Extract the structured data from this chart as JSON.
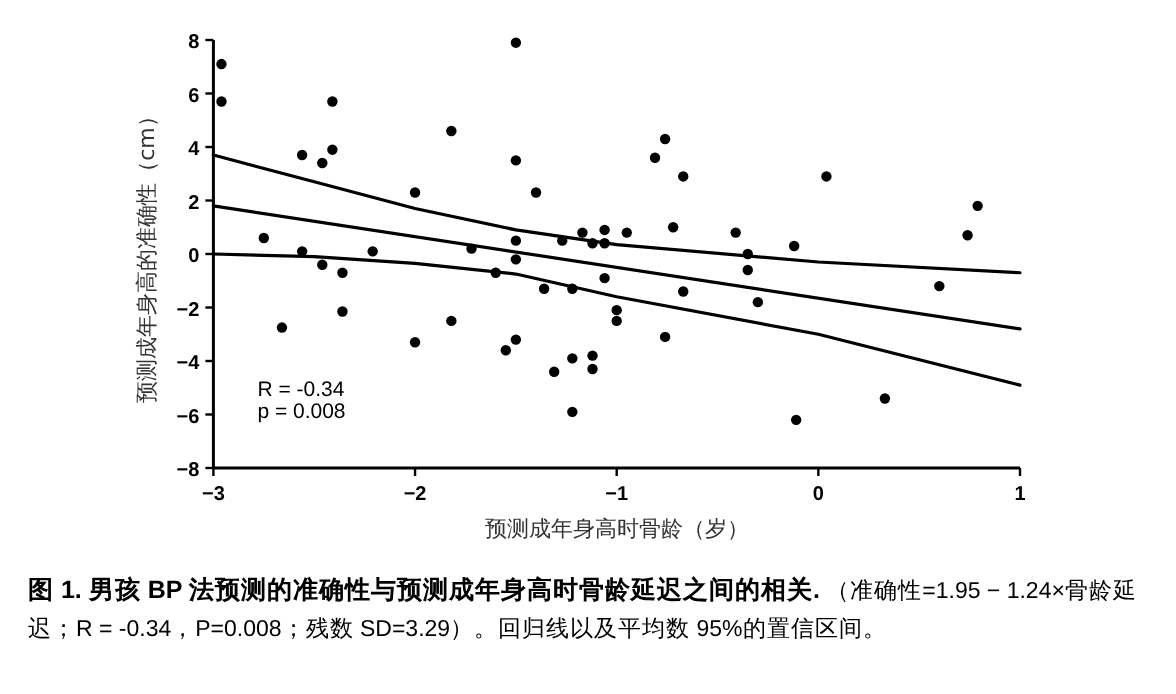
{
  "chart_data": {
    "type": "scatter",
    "xlabel": "预测成年身高时骨龄（岁）",
    "ylabel": "预测成年身高的准确性（cm）",
    "xlim": [
      -3,
      1
    ],
    "xticks": [
      -3,
      -2,
      -1,
      0,
      1
    ],
    "ylim": [
      -8,
      8
    ],
    "yticks": [
      -8,
      -6,
      -4,
      -2,
      0,
      2,
      4,
      6,
      8
    ],
    "grid": false,
    "series": [
      {
        "color": "#000000",
        "marker": "circle",
        "x": [
          -2.96,
          -2.96,
          -2.75,
          -2.66,
          -2.56,
          -2.56,
          -2.46,
          -2.46,
          -2.41,
          -2.41,
          -2.36,
          -2.36,
          -2.21,
          -2.0,
          -2.0,
          -1.82,
          -1.82,
          -1.72,
          -1.6,
          -1.55,
          -1.5,
          -1.5,
          -1.5,
          -1.5,
          -1.5,
          -1.4,
          -1.36,
          -1.31,
          -1.27,
          -1.22,
          -1.22,
          -1.22,
          -1.17,
          -1.12,
          -1.12,
          -1.12,
          -1.06,
          -1.06,
          -0.95,
          -1.06,
          -1.0,
          -1.0,
          -0.81,
          -0.76,
          -0.67,
          -0.72,
          -0.67,
          -0.76,
          -0.41,
          -0.35,
          -0.35,
          -0.3,
          -0.12,
          -0.11,
          0.04,
          0.33,
          0.6,
          0.74,
          0.79
        ],
        "values": [
          7.1,
          5.7,
          0.6,
          -2.75,
          3.7,
          0.1,
          3.4,
          -0.4,
          5.7,
          3.9,
          -0.7,
          -2.15,
          0.1,
          2.3,
          -3.3,
          4.6,
          -2.5,
          0.2,
          -0.7,
          -3.6,
          7.9,
          3.5,
          0.5,
          -0.2,
          -3.2,
          2.3,
          -1.3,
          -4.4,
          0.5,
          -1.3,
          -3.9,
          -5.9,
          0.8,
          0.4,
          -3.8,
          -4.3,
          0.4,
          0.9,
          0.8,
          -0.9,
          -2.1,
          -2.5,
          3.6,
          4.3,
          2.9,
          1.0,
          -1.4,
          -3.1,
          0.8,
          0.0,
          -0.6,
          -1.8,
          0.3,
          -6.2,
          2.9,
          -5.4,
          -1.2,
          0.7,
          1.8
        ]
      },
      {
        "type": "line",
        "color": "#000000",
        "marker": "none",
        "line_style": "solid",
        "x": [
          -3,
          -2.5,
          -2,
          -1.5,
          -1,
          0,
          1
        ],
        "values": [
          3.7,
          2.7,
          1.7,
          0.9,
          0.35,
          -0.3,
          -0.7
        ]
      },
      {
        "type": "line",
        "color": "#000000",
        "marker": "none",
        "line_style": "solid",
        "x": [
          -3,
          1
        ],
        "values": [
          1.8,
          -2.8
        ]
      },
      {
        "type": "line",
        "color": "#000000",
        "marker": "none",
        "line_style": "solid",
        "x": [
          -3,
          -2.5,
          -2,
          -1.5,
          -1,
          0,
          1
        ],
        "values": [
          0.0,
          -0.1,
          -0.35,
          -0.75,
          -1.6,
          -3.0,
          -4.9
        ]
      }
    ],
    "annotations": [
      "R = -0.34",
      "p = 0.008",
      "图 1. 男孩 BP 法预测的准确性与预测成年身高时骨龄延迟之间的相关.",
      "（准确性=1.95 − 1.24×骨龄延迟；R = -0.34，P=0.008；残数 SD=3.29）。回归线以及平均数 95%的置信区间。"
    ]
  }
}
